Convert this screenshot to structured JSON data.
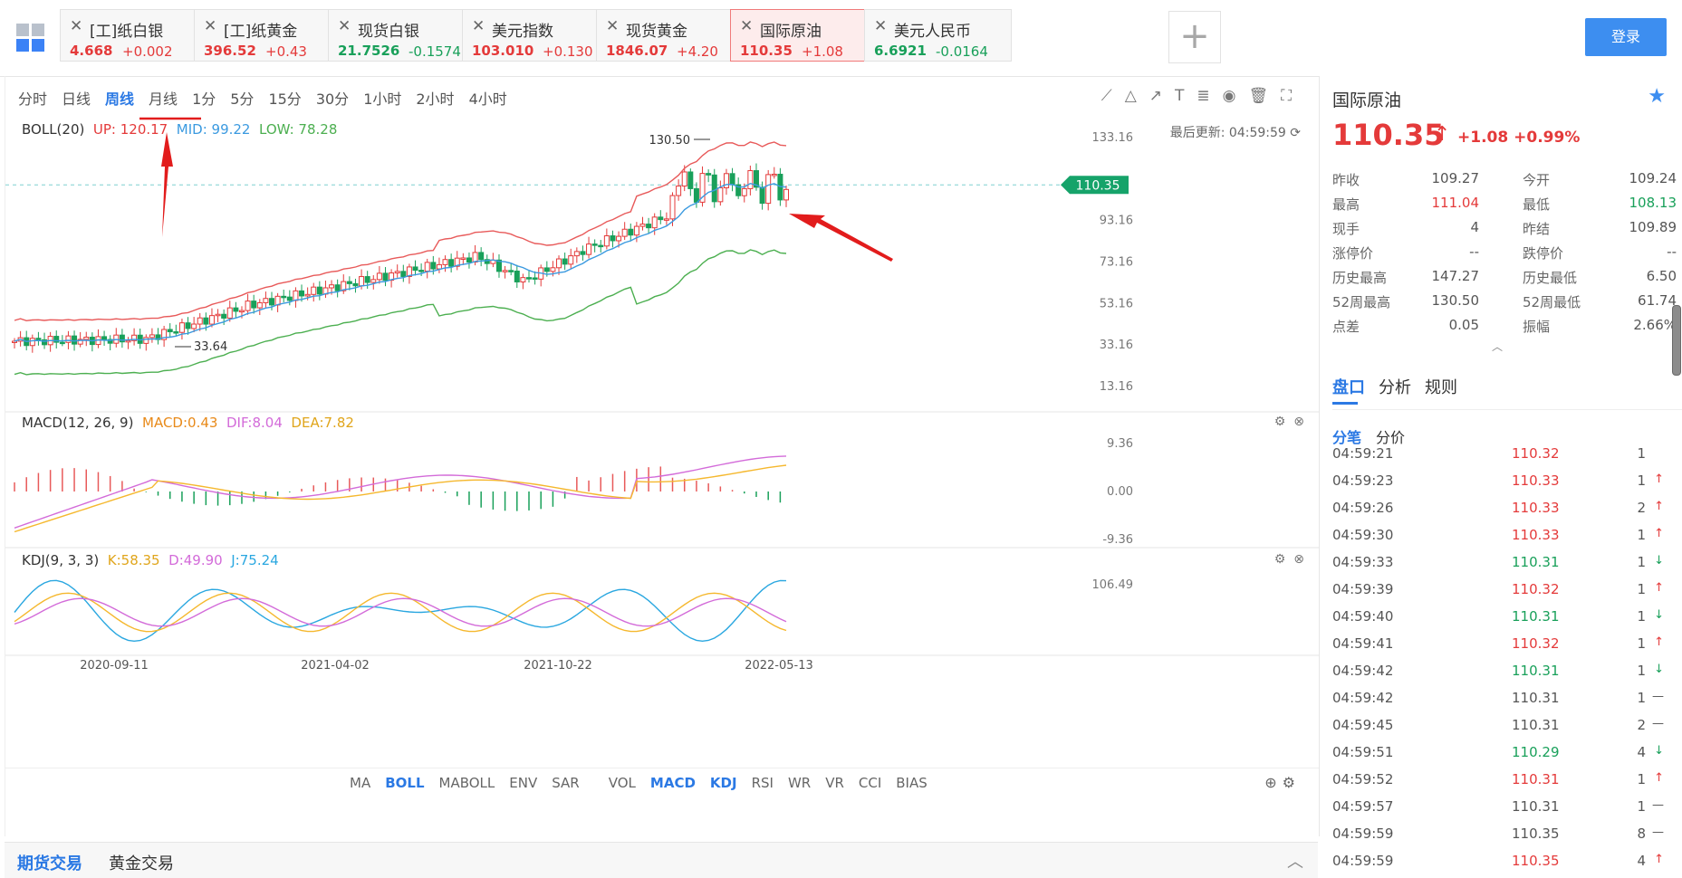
{
  "tabs": [
    {
      "name": "[工]纸白银",
      "price": "4.668",
      "change": "+0.002",
      "dir": "up"
    },
    {
      "name": "[工]纸黄金",
      "price": "396.52",
      "change": "+0.43",
      "dir": "up"
    },
    {
      "name": "现货白银",
      "price": "21.7526",
      "change": "-0.1574",
      "dir": "down"
    },
    {
      "name": "美元指数",
      "price": "103.010",
      "change": "+0.130",
      "dir": "up"
    },
    {
      "name": "现货黄金",
      "price": "1846.07",
      "change": "+4.20",
      "dir": "up"
    },
    {
      "name": "国际原油",
      "price": "110.35",
      "change": "+1.08",
      "dir": "up",
      "active": true
    },
    {
      "name": "美元人民币",
      "price": "6.6921",
      "change": "-0.0164",
      "dir": "down"
    }
  ],
  "header": {
    "add_tab": "+",
    "login": "登录",
    "close": "✕"
  },
  "periods": [
    "分时",
    "日线",
    "周线",
    "月线",
    "1分",
    "5分",
    "15分",
    "30分",
    "1小时",
    "2小时",
    "4小时"
  ],
  "active_period": "周线",
  "boll": {
    "label": "BOLL(20)",
    "up": "UP: 120.17",
    "mid": "MID: 99.22",
    "low": "LOW: 78.28"
  },
  "last_update": "最后更新: 04:59:59",
  "price_axis": [
    "133.16",
    "93.16",
    "73.16",
    "53.16",
    "33.16",
    "13.16"
  ],
  "current_price_tag": "110.35",
  "high_marker": "130.50",
  "low_marker": "33.64",
  "macd": {
    "label": "MACD(12, 26, 9)",
    "macd": "MACD:0.43",
    "dif": "DIF:8.04",
    "dea": "DEA:7.82",
    "axis": [
      "9.36",
      "0.00",
      "-9.36"
    ]
  },
  "kdj": {
    "label": "KDJ(9, 3, 3)",
    "k": "K:58.35",
    "d": "D:49.90",
    "j": "J:75.24",
    "axis": [
      "106.49"
    ]
  },
  "dates": [
    "2020-09-11",
    "2021-04-02",
    "2021-10-22",
    "2022-05-13"
  ],
  "indicators": [
    "MA",
    "BOLL",
    "MABOLL",
    "ENV",
    "SAR",
    "VOL",
    "MACD",
    "KDJ",
    "RSI",
    "WR",
    "VR",
    "CCI",
    "BIAS"
  ],
  "indicators_on": [
    "BOLL",
    "MACD",
    "KDJ"
  ],
  "trade": {
    "futures": "期货交易",
    "gold": "黄金交易"
  },
  "side": {
    "name": "国际原油",
    "price": "110.35",
    "arrow": "↑",
    "change": "+1.08",
    "pct": "+0.99%",
    "stats": [
      {
        "l1": "昨收",
        "v1": "109.27",
        "c1": "neutral",
        "l2": "今开",
        "v2": "109.24",
        "c2": "neutral"
      },
      {
        "l1": "最高",
        "v1": "111.04",
        "c1": "up",
        "l2": "最低",
        "v2": "108.13",
        "c2": "down"
      },
      {
        "l1": "现手",
        "v1": "4",
        "c1": "neutral",
        "l2": "昨结",
        "v2": "109.89",
        "c2": "neutral"
      },
      {
        "l1": "涨停价",
        "v1": "--",
        "c1": "neutral",
        "l2": "跌停价",
        "v2": "--",
        "c2": "neutral"
      },
      {
        "l1": "历史最高",
        "v1": "147.27",
        "c1": "neutral",
        "l2": "历史最低",
        "v2": "6.50",
        "c2": "neutral"
      },
      {
        "l1": "52周最高",
        "v1": "130.50",
        "c1": "neutral",
        "l2": "52周最低",
        "v2": "61.74",
        "c2": "neutral"
      },
      {
        "l1": "点差",
        "v1": "0.05",
        "c1": "neutral",
        "l2": "振幅",
        "v2": "2.66%",
        "c2": "neutral"
      }
    ],
    "tabs": [
      "盘口",
      "分析",
      "规则"
    ],
    "subtabs": [
      "分笔",
      "分价"
    ],
    "ticks": [
      {
        "t": "04:59:21",
        "p": "110.32",
        "v": "1",
        "d": "",
        "c": "up"
      },
      {
        "t": "04:59:23",
        "p": "110.33",
        "v": "1",
        "d": "↑",
        "c": "up"
      },
      {
        "t": "04:59:26",
        "p": "110.33",
        "v": "2",
        "d": "↑",
        "c": "up"
      },
      {
        "t": "04:59:30",
        "p": "110.33",
        "v": "1",
        "d": "↑",
        "c": "up"
      },
      {
        "t": "04:59:33",
        "p": "110.31",
        "v": "1",
        "d": "↓",
        "c": "down"
      },
      {
        "t": "04:59:39",
        "p": "110.32",
        "v": "1",
        "d": "↑",
        "c": "up"
      },
      {
        "t": "04:59:40",
        "p": "110.31",
        "v": "1",
        "d": "↓",
        "c": "down"
      },
      {
        "t": "04:59:41",
        "p": "110.32",
        "v": "1",
        "d": "↑",
        "c": "up"
      },
      {
        "t": "04:59:42",
        "p": "110.31",
        "v": "1",
        "d": "↓",
        "c": "down"
      },
      {
        "t": "04:59:42",
        "p": "110.31",
        "v": "1",
        "d": "—",
        "c": "neutral"
      },
      {
        "t": "04:59:45",
        "p": "110.31",
        "v": "2",
        "d": "—",
        "c": "neutral"
      },
      {
        "t": "04:59:51",
        "p": "110.29",
        "v": "4",
        "d": "↓",
        "c": "down"
      },
      {
        "t": "04:59:52",
        "p": "110.31",
        "v": "1",
        "d": "↑",
        "c": "up"
      },
      {
        "t": "04:59:57",
        "p": "110.31",
        "v": "1",
        "d": "—",
        "c": "neutral"
      },
      {
        "t": "04:59:59",
        "p": "110.35",
        "v": "8",
        "d": "—",
        "c": "neutral"
      },
      {
        "t": "04:59:59",
        "p": "110.35",
        "v": "4",
        "d": "↑",
        "c": "up"
      }
    ]
  },
  "colors": {
    "up": "#e43a3a",
    "down": "#19a05a",
    "accent": "#2b79e4",
    "boll_mid": "#3b9ae0",
    "boll_low": "#4caf50",
    "boll_up": "#e85a5a",
    "dif": "#d36bd9",
    "dea": "#f5b82e"
  }
}
